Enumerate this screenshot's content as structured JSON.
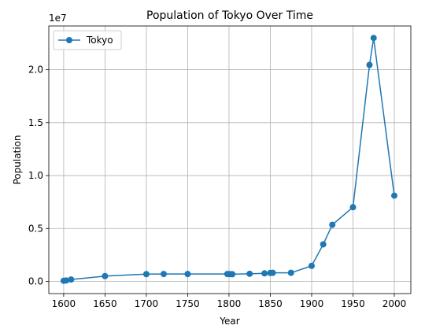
{
  "chart_data": {
    "type": "line",
    "title": "Population of Tokyo Over Time",
    "xlabel": "Year",
    "ylabel": "Population",
    "y_offset_label": "1e7",
    "xlim": [
      1582,
      2020
    ],
    "ylim": [
      -0.115,
      2.413
    ],
    "x_ticks": [
      1600,
      1650,
      1700,
      1750,
      1800,
      1850,
      1900,
      1950,
      2000
    ],
    "y_ticks": [
      0.0,
      0.5,
      1.0,
      1.5,
      2.0
    ],
    "y_tick_labels": [
      "0.0",
      "0.5",
      "1.0",
      "1.5",
      "2.0"
    ],
    "grid": true,
    "legend_position": "upper-left",
    "series": [
      {
        "name": "Tokyo",
        "color": "#1f77b4",
        "marker": "circle",
        "x": [
          1600,
          1603,
          1609,
          1650,
          1700,
          1721,
          1750,
          1798,
          1801,
          1804,
          1825,
          1843,
          1850,
          1853,
          1875,
          1900,
          1914,
          1925,
          1950,
          1970,
          1975,
          2000
        ],
        "y": [
          0.006,
          0.009,
          0.018,
          0.05,
          0.069,
          0.07,
          0.07,
          0.07,
          0.069,
          0.068,
          0.072,
          0.076,
          0.08,
          0.081,
          0.081,
          0.147,
          0.35,
          0.535,
          0.701,
          2.045,
          2.3,
          0.81
        ]
      }
    ]
  }
}
